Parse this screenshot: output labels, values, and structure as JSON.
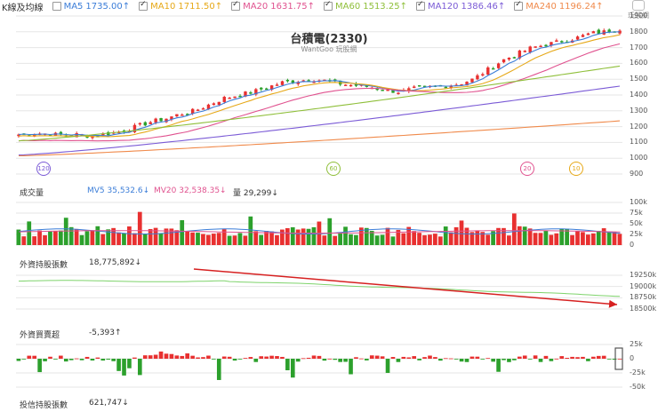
{
  "legend": [
    {
      "label": "K線及均線",
      "checked": false,
      "color": "#333333",
      "value": ""
    },
    {
      "label": "MA5",
      "checked": false,
      "color": "#3b7dd8",
      "value": "1735.00↑"
    },
    {
      "label": "MA10",
      "checked": true,
      "color": "#e6a817",
      "value": "1711.50↑"
    },
    {
      "label": "MA20",
      "checked": true,
      "color": "#e0528f",
      "value": "1631.75↑"
    },
    {
      "label": "MA60",
      "checked": true,
      "color": "#8fbf3a",
      "value": "1513.25↑"
    },
    {
      "label": "MA120",
      "checked": true,
      "color": "#7b5bd6",
      "value": "1386.46↑"
    },
    {
      "label": "MA240",
      "checked": true,
      "color": "#f08a4b",
      "value": "1196.24↑"
    }
  ],
  "logo_text": "玩股網",
  "chart_title": "台積電(2330)",
  "chart_subtitle": "WantGoo 玩股網",
  "price_axis": [
    "1900",
    "1800",
    "1700",
    "1600",
    "1500",
    "1400",
    "1300",
    "1200",
    "1100",
    "1000",
    "900"
  ],
  "markers": [
    {
      "label": "120",
      "color": "#7b5bd6"
    },
    {
      "label": "60",
      "color": "#8fbf3a"
    },
    {
      "label": "20",
      "color": "#e0528f"
    },
    {
      "label": "10",
      "color": "#e6a817"
    }
  ],
  "volume_panel": {
    "label": "成交量",
    "mv5": "MV5 35,532.6↓",
    "mv20": "MV20 32,538.35↓",
    "vol": "量 29,299↓",
    "mv5_color": "#3b7dd8",
    "mv20_color": "#e0528f",
    "axis": [
      "100k",
      "75k",
      "50k",
      "25k",
      "0"
    ]
  },
  "foreign_holding_panel": {
    "label": "外資持股張數",
    "value": "18,775,892↓",
    "axis": [
      "19250k",
      "19000k",
      "18750k",
      "18500k"
    ]
  },
  "foreign_net_panel": {
    "label": "外資買賣超",
    "value": "-5,393↑",
    "axis": [
      "25k",
      "0",
      "-25k",
      "-50k"
    ]
  },
  "trust_panel": {
    "label": "投信持股張數",
    "value": "621,747↓"
  },
  "colors": {
    "up": "#e83030",
    "down": "#2ca02c",
    "grid": "#e6e6e6",
    "arrow": "#d62020",
    "holding_line": "#7ed36b"
  },
  "chart_data": {
    "type": "candlestick",
    "title": "台積電(2330)",
    "subtitle": "WantGoo 玩股網",
    "ylim": [
      900,
      1900
    ],
    "candles_approx": "~115 daily candles, trend from ~1150 to ~1820",
    "close_trend": [
      1150,
      1160,
      1155,
      1145,
      1150,
      1140,
      1155,
      1170,
      1200,
      1230,
      1250,
      1280,
      1300,
      1340,
      1380,
      1400,
      1420,
      1450,
      1480,
      1490,
      1500,
      1490,
      1470,
      1460,
      1450,
      1430,
      1420,
      1440,
      1450,
      1460,
      1470,
      1500,
      1560,
      1620,
      1660,
      1700,
      1720,
      1740,
      1760,
      1790,
      1800,
      1820
    ],
    "ma_latest": {
      "MA5": 1735.0,
      "MA10": 1711.5,
      "MA20": 1631.75,
      "MA60": 1513.25,
      "MA120": 1386.46,
      "MA240": 1196.24
    },
    "volume": {
      "ylim": [
        0,
        100000
      ],
      "MV5": 35532.6,
      "MV20": 32538.35,
      "latest": 29299
    },
    "foreign_holding": {
      "ylim": [
        18500000,
        19250000
      ],
      "latest": 18775892
    },
    "foreign_net": {
      "ylim": [
        -50000,
        25000
      ],
      "latest": -5393
    },
    "trust_holding": {
      "latest": 621747
    }
  }
}
